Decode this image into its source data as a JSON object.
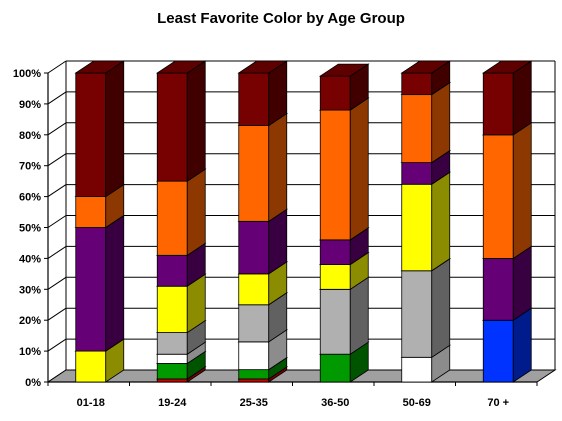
{
  "chart_data": {
    "type": "bar",
    "stacked": true,
    "three_d": true,
    "title": "Least Favorite Color by Age Group",
    "categories": [
      "01-18",
      "19-24",
      "25-35",
      "36-50",
      "50-69",
      "70 +"
    ],
    "y_ticks": [
      "0%",
      "10%",
      "20%",
      "30%",
      "40%",
      "50%",
      "60%",
      "70%",
      "80%",
      "90%",
      "100%"
    ],
    "ylim": [
      0,
      100
    ],
    "grid": true,
    "legend": "none",
    "series": [
      {
        "color": "#0033ff",
        "values": [
          0,
          0,
          0,
          0,
          0,
          20
        ]
      },
      {
        "color": "#cc0000",
        "values": [
          0,
          1,
          1,
          0,
          0,
          0
        ]
      },
      {
        "color": "#009900",
        "values": [
          0,
          5,
          3,
          9,
          0,
          0
        ]
      },
      {
        "color": "#ffffff",
        "values": [
          0,
          3,
          9,
          0,
          8,
          0
        ]
      },
      {
        "color": "#b0b0b0",
        "values": [
          0,
          7,
          12,
          21,
          28,
          0
        ]
      },
      {
        "color": "#ffff00",
        "values": [
          10,
          15,
          10,
          8,
          28,
          0
        ]
      },
      {
        "color": "#660077",
        "values": [
          40,
          10,
          17,
          8,
          7,
          20
        ]
      },
      {
        "color": "#ff6600",
        "values": [
          10,
          24,
          31,
          42,
          22,
          40
        ]
      },
      {
        "color": "#770000",
        "values": [
          40,
          35,
          17,
          11,
          7,
          20
        ]
      }
    ]
  }
}
